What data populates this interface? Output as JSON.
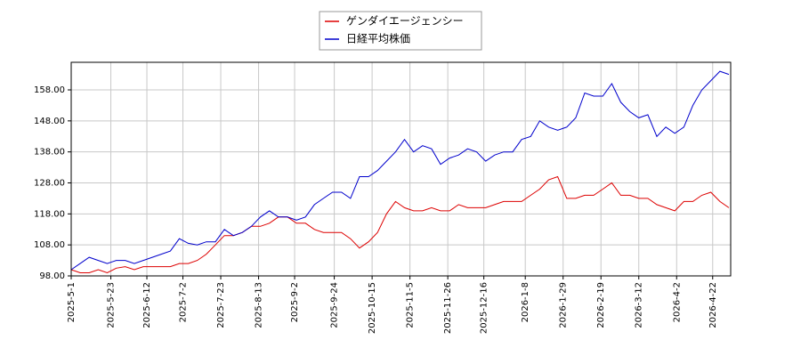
{
  "chart_data": {
    "type": "line",
    "x": [
      "2025-5-1",
      "2025-5-6",
      "2025-5-11",
      "2025-5-16",
      "2025-5-21",
      "2025-5-26",
      "2025-5-31",
      "2025-6-5",
      "2025-6-10",
      "2025-6-15",
      "2025-6-20",
      "2025-6-25",
      "2025-6-30",
      "2025-7-5",
      "2025-7-10",
      "2025-7-15",
      "2025-7-20",
      "2025-7-25",
      "2025-7-30",
      "2025-8-4",
      "2025-8-9",
      "2025-8-14",
      "2025-8-19",
      "2025-8-24",
      "2025-8-29",
      "2025-9-3",
      "2025-9-8",
      "2025-9-13",
      "2025-9-18",
      "2025-9-23",
      "2025-9-28",
      "2025-10-3",
      "2025-10-8",
      "2025-10-13",
      "2025-10-18",
      "2025-10-23",
      "2025-10-28",
      "2025-11-2",
      "2025-11-7",
      "2025-11-12",
      "2025-11-17",
      "2025-11-22",
      "2025-11-27",
      "2025-12-2",
      "2025-12-7",
      "2025-12-12",
      "2025-12-17",
      "2025-12-22",
      "2025-12-27",
      "2026-1-1",
      "2026-1-6",
      "2026-1-11",
      "2026-1-16",
      "2026-1-21",
      "2026-1-26",
      "2026-1-31",
      "2026-2-5",
      "2026-2-10",
      "2026-2-15",
      "2026-2-20",
      "2026-2-25",
      "2026-3-2",
      "2026-3-7",
      "2026-3-12",
      "2026-3-17",
      "2026-3-22",
      "2026-3-27",
      "2026-4-1",
      "2026-4-6",
      "2026-4-11",
      "2026-4-16",
      "2026-4-21",
      "2026-4-26",
      "2026-5-1"
    ],
    "series": [
      {
        "name": "ゲンダイエージェンシー",
        "color": "#dd0000",
        "values": [
          100,
          99,
          99,
          100,
          99,
          100.5,
          101,
          100,
          101,
          101,
          101,
          101,
          102,
          102,
          103,
          105,
          108,
          111,
          111,
          112,
          114,
          114,
          115,
          117,
          117,
          115,
          115,
          113,
          112,
          112,
          112,
          110,
          107,
          109,
          112,
          118,
          122,
          120,
          119,
          119,
          120,
          119,
          119,
          121,
          120,
          120,
          120,
          121,
          122,
          122,
          122,
          124,
          126,
          129,
          130,
          123,
          123,
          124,
          124,
          126,
          128,
          124,
          124,
          123,
          123,
          121,
          120,
          119,
          122,
          122,
          124,
          125,
          122,
          120
        ]
      },
      {
        "name": "日経平均株価",
        "color": "#0000cc",
        "values": [
          100,
          102,
          104,
          103,
          102,
          103,
          103,
          102,
          103,
          104,
          105,
          106,
          110,
          108.5,
          108,
          109,
          109,
          113,
          111,
          112,
          114,
          117,
          119,
          117,
          117,
          116,
          117,
          121,
          123,
          125,
          125,
          123,
          130,
          130,
          132,
          135,
          138,
          142,
          138,
          140,
          139,
          134,
          136,
          137,
          139,
          138,
          135,
          137,
          138,
          138,
          142,
          143,
          148,
          146,
          145,
          146,
          149,
          157,
          156,
          156,
          160,
          154,
          151,
          149,
          150,
          143,
          146,
          144,
          146,
          153,
          158,
          161,
          164,
          163
        ]
      }
    ],
    "xlim": [
      "2025-5-1",
      "2026-5-2"
    ],
    "xticks": [
      "2025-5-1",
      "2025-5-23",
      "2025-6-12",
      "2025-7-2",
      "2025-7-23",
      "2025-8-13",
      "2025-9-2",
      "2025-9-24",
      "2025-10-15",
      "2025-11-5",
      "2025-11-26",
      "2025-12-16",
      "2026-1-8",
      "2026-1-29",
      "2026-2-19",
      "2026-3-12",
      "2026-4-2",
      "2026-4-22"
    ],
    "ylim": [
      98,
      166.9
    ],
    "yticks": [
      {
        "value": 98,
        "label": "98.00"
      },
      {
        "value": 108,
        "label": "108.00"
      },
      {
        "value": 118,
        "label": "118.00"
      },
      {
        "value": 128,
        "label": "128.00"
      },
      {
        "value": 138,
        "label": "138.00"
      },
      {
        "value": 148,
        "label": "148.00"
      },
      {
        "value": 158,
        "label": "158.00"
      }
    ],
    "grid": true,
    "legend": "top"
  }
}
